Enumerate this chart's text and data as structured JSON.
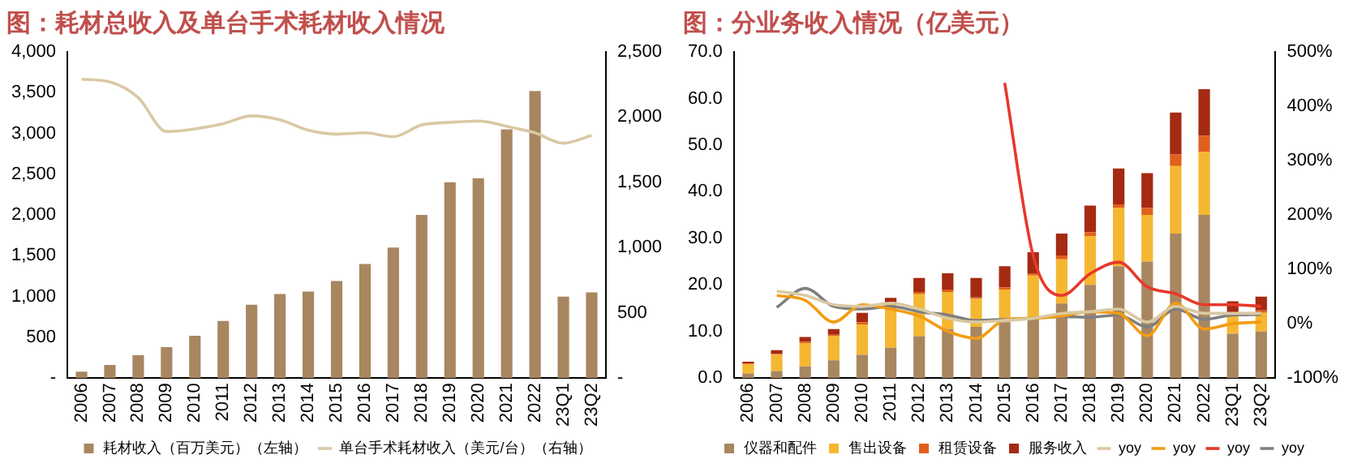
{
  "chart_data": [
    {
      "type": "bar",
      "title": "图：耗材总收入及单台手术耗材收入情况",
      "categories": [
        "2006",
        "2007",
        "2008",
        "2009",
        "2010",
        "2011",
        "2012",
        "2013",
        "2014",
        "2015",
        "2016",
        "2017",
        "2018",
        "2019",
        "2020",
        "2021",
        "2022",
        "23Q1",
        "23Q2"
      ],
      "series": [
        {
          "name": "耗材收入（百万美元）（左轴）",
          "color": "#a88660",
          "values": [
            80,
            160,
            280,
            380,
            520,
            700,
            900,
            1030,
            1060,
            1190,
            1400,
            1600,
            2000,
            2400,
            2450,
            3050,
            3520,
            1000,
            1050
          ]
        },
        {
          "name": "单台手术耗材收入（美元/台）（右轴）",
          "type": "line",
          "axis": "y2",
          "color": "#d9c9a3",
          "values": [
            2290,
            2270,
            2150,
            1890,
            1910,
            1950,
            2010,
            1980,
            1900,
            1870,
            1880,
            1850,
            1940,
            1960,
            1970,
            1930,
            1880,
            1800,
            1860
          ]
        }
      ],
      "ylim": [
        0,
        4000
      ],
      "yticks": [
        {
          "value": 0,
          "label": "-"
        },
        500,
        {
          "value": 1000,
          "label": "1,000"
        },
        {
          "value": 1500,
          "label": "1,500"
        },
        {
          "value": 2000,
          "label": "2,000"
        },
        {
          "value": 2500,
          "label": "2,500"
        },
        {
          "value": 3000,
          "label": "3,000"
        },
        {
          "value": 3500,
          "label": "3,500"
        },
        {
          "value": 4000,
          "label": "4,000"
        }
      ],
      "y2lim": [
        0,
        2500
      ],
      "y2ticks": [
        {
          "value": 0,
          "label": "-"
        },
        500,
        {
          "value": 1000,
          "label": "1,000"
        },
        {
          "value": 1500,
          "label": "1,500"
        },
        {
          "value": 2000,
          "label": "2,000"
        },
        {
          "value": 2500,
          "label": "2,500"
        }
      ],
      "grid": false,
      "legend": "bottom",
      "marker": "none",
      "line_style": "solid"
    },
    {
      "type": "bar",
      "title": "图：分业务收入情况（亿美元）",
      "stacked": true,
      "categories": [
        "2006",
        "2007",
        "2008",
        "2009",
        "2010",
        "2011",
        "2012",
        "2013",
        "2014",
        "2015",
        "2016",
        "2017",
        "2018",
        "2019",
        "2020",
        "2021",
        "2022",
        "23Q1",
        "23Q2"
      ],
      "series": [
        {
          "name": "仪器和配件",
          "color": "#a88660",
          "values": [
            1.0,
            1.5,
            2.5,
            3.8,
            5.0,
            6.5,
            9.0,
            10.5,
            11.0,
            12.0,
            13.0,
            16.0,
            20.0,
            24.0,
            25.0,
            31.0,
            35.0,
            9.5,
            10.0
          ]
        },
        {
          "name": "售出设备",
          "color": "#f5b731",
          "values": [
            2.0,
            3.5,
            5.0,
            5.2,
            6.5,
            9.5,
            9.0,
            8.0,
            6.0,
            7.0,
            9.0,
            9.5,
            10.5,
            12.5,
            10.0,
            14.5,
            13.5,
            4.0,
            4.0
          ]
        },
        {
          "name": "租赁设备",
          "color": "#e0601c",
          "values": [
            0.1,
            0.2,
            0.3,
            0.3,
            0.5,
            null,
            0.5,
            0.5,
            0.3,
            0.5,
            0.5,
            0.8,
            0.8,
            0.8,
            1.5,
            2.5,
            3.5,
            0.5,
            0.5
          ]
        },
        {
          "name": "服务收入",
          "color": "#a52a12",
          "values": [
            0.4,
            0.8,
            1.0,
            1.2,
            2.0,
            1.2,
            3.0,
            3.5,
            4.2,
            4.5,
            4.5,
            4.7,
            5.7,
            7.7,
            7.5,
            9.0,
            10.0,
            2.5,
            3.0
          ]
        },
        {
          "name": "yoy",
          "type": "line",
          "axis": "y2",
          "color": "#d9c9a3",
          "values": [
            null,
            60,
            52,
            35,
            32,
            38,
            27,
            10,
            3,
            6,
            10,
            19,
            22,
            27,
            3,
            32,
            19,
            19,
            19
          ]
        },
        {
          "name": "yoy",
          "type": "line",
          "axis": "y2",
          "color": "#f39c12",
          "values": [
            null,
            52,
            43,
            3,
            35,
            27,
            14,
            -14,
            -27,
            7,
            10,
            14,
            22,
            19,
            -22,
            38,
            -10,
            0,
            3
          ]
        },
        {
          "name": "yoy",
          "type": "line",
          "axis": "y2",
          "color": "#e8382b",
          "values": [
            null,
            null,
            null,
            null,
            null,
            null,
            null,
            null,
            null,
            443,
            125,
            52,
            92,
            113,
            68,
            55,
            35,
            35,
            32
          ]
        },
        {
          "name": "yoy",
          "type": "line",
          "axis": "y2",
          "color": "#7f7f7f",
          "values": [
            null,
            30,
            65,
            32,
            27,
            32,
            22,
            16,
            6,
            8,
            10,
            13,
            12,
            16,
            -6,
            27,
            8,
            16,
            17
          ]
        }
      ],
      "ylim": [
        0,
        70
      ],
      "yticks": [
        {
          "value": 0,
          "label": "0.0"
        },
        {
          "value": 10,
          "label": "10.0"
        },
        {
          "value": 20,
          "label": "20.0"
        },
        {
          "value": 30,
          "label": "30.0"
        },
        {
          "value": 40,
          "label": "40.0"
        },
        {
          "value": 50,
          "label": "50.0"
        },
        {
          "value": 60,
          "label": "60.0"
        },
        {
          "value": 70,
          "label": "70.0"
        }
      ],
      "y2lim": [
        -100,
        500
      ],
      "y2ticks": [
        {
          "value": -100,
          "label": "-100%"
        },
        {
          "value": 0,
          "label": "0%"
        },
        {
          "value": 100,
          "label": "100%"
        },
        {
          "value": 200,
          "label": "200%"
        },
        {
          "value": 300,
          "label": "300%"
        },
        {
          "value": 400,
          "label": "400%"
        },
        {
          "value": 500,
          "label": "500%"
        }
      ],
      "grid": false,
      "legend": "bottom",
      "marker": "none",
      "line_style": "solid"
    }
  ]
}
